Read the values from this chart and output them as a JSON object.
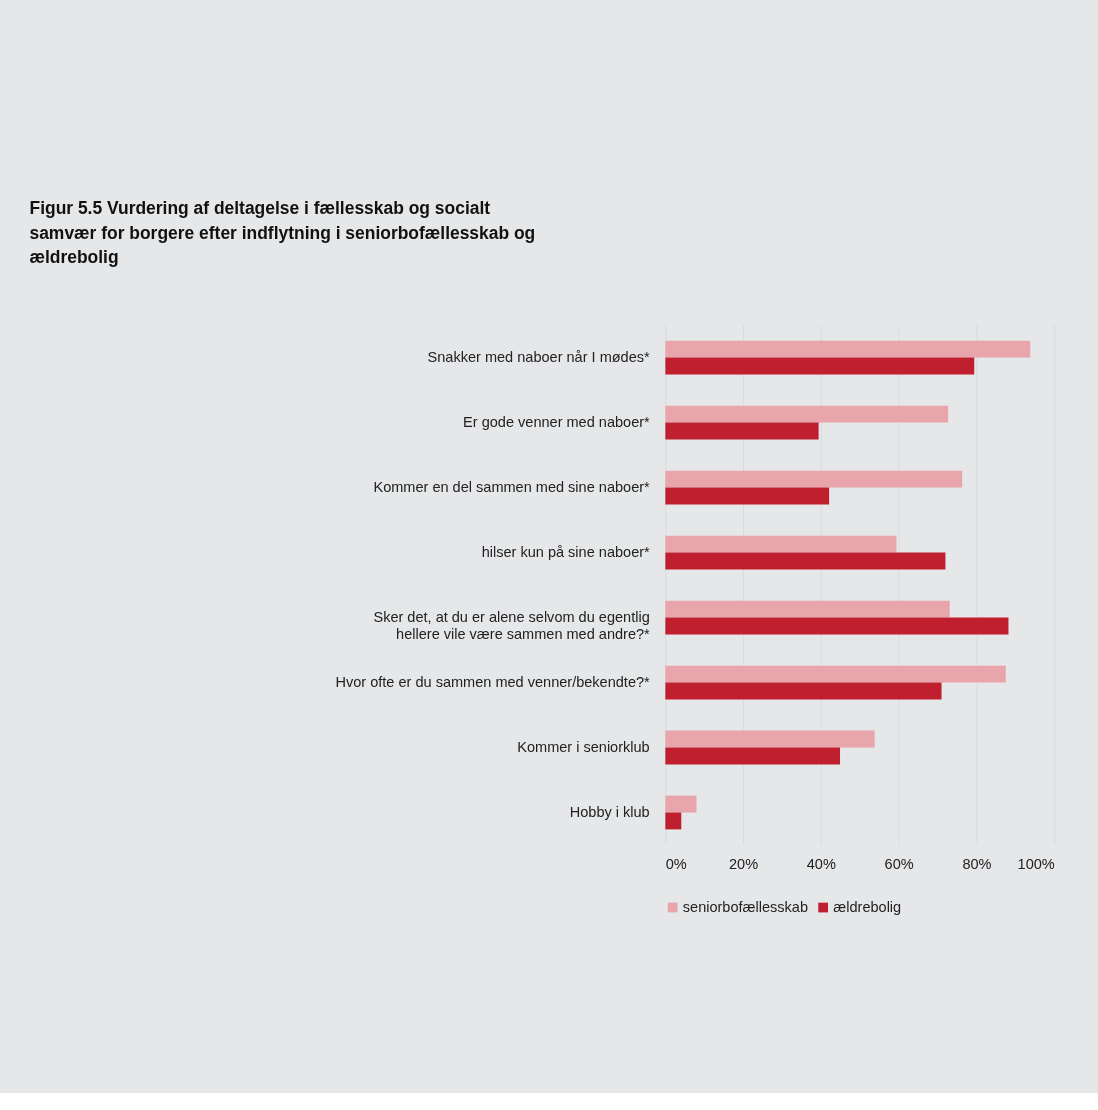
{
  "chart_data": {
    "type": "bar",
    "orientation": "horizontal",
    "title": "Figur 5.5 Vurdering af deltagelse i fællesskab og socialt samvær for borgere efter indflytning i seniorbofællesskab og ældrebolig",
    "categories": [
      "Snakker med naboer når I mødes*",
      "Er gode venner med naboer*",
      "Kommer en del sammen med sine naboer*",
      "hilser kun på sine naboer*",
      "Sker det, at du er alene selvom du egentlig hellere vile være sammen med andre?*",
      "Hvor ofte er du sammen med venner/bekendte?*",
      "Kommer i seniorklub",
      "Hobby i klub"
    ],
    "series": [
      {
        "name": "seniorbofællesskab",
        "color": "#e8a5ab",
        "values": [
          93.8,
          72.7,
          76.3,
          59.4,
          73.1,
          87.5,
          53.8,
          8.0
        ]
      },
      {
        "name": "ældrebolig",
        "color": "#c01f30",
        "values": [
          79.4,
          39.4,
          42.1,
          72.0,
          88.2,
          71.0,
          44.9,
          4.1
        ]
      }
    ],
    "xlim": [
      0,
      100
    ],
    "xticks": [
      {
        "value": 0,
        "label": "0%"
      },
      {
        "value": 20,
        "label": "20%"
      },
      {
        "value": 40,
        "label": "40%"
      },
      {
        "value": 60,
        "label": "60%"
      },
      {
        "value": 80,
        "label": "80%"
      },
      {
        "value": 100,
        "label": "100%"
      }
    ],
    "grid": "x",
    "legend": "bottom"
  }
}
